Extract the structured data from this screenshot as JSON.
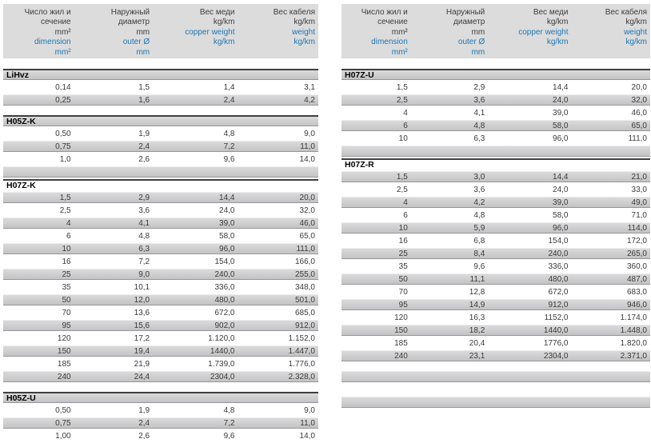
{
  "colors": {
    "accent_blue": "#1f76b2",
    "header_block_gray": "#dcdcdd",
    "row_gray": "#cbcbcd",
    "text_dark": "#3a3a3a"
  },
  "column_headers": [
    {
      "ru": [
        "Число жил и",
        "сечение",
        "mm²"
      ],
      "en": [
        "dimension",
        "mm²"
      ]
    },
    {
      "ru": [
        "Наружный",
        "диаметр",
        "mm"
      ],
      "en": [
        "outer Ø",
        "mm"
      ]
    },
    {
      "ru": [
        "Вес меди",
        "kg/km"
      ],
      "en": [
        "copper weight",
        "kg/km"
      ]
    },
    {
      "ru": [
        "Вес кабеля",
        "kg/km"
      ],
      "en": [
        "weight",
        "kg/km"
      ]
    }
  ],
  "tables": {
    "left": {
      "blocks": [
        [
          {
            "section": "LiHvz"
          },
          {
            "cells": [
              "0,14",
              "1,5",
              "1,4",
              "3,1"
            ]
          },
          {
            "cells": [
              "0,25",
              "1,6",
              "2,4",
              "4,2"
            ]
          }
        ],
        [
          {
            "section": "H05Z-K"
          },
          {
            "cells": [
              "0,50",
              "1,9",
              "4,8",
              "9,0"
            ]
          },
          {
            "cells": [
              "0,75",
              "2,4",
              "7,2",
              "11,0"
            ]
          },
          {
            "cells": [
              "1,0",
              "2,6",
              "9,6",
              "14,0"
            ]
          },
          {
            "empty": true
          },
          {
            "section": "H07Z-K"
          },
          {
            "cells": [
              "1,5",
              "2,9",
              "14,4",
              "20,0"
            ]
          },
          {
            "cells": [
              "2,5",
              "3,6",
              "24,0",
              "32,0"
            ]
          },
          {
            "cells": [
              "4",
              "4,1",
              "39,0",
              "46,0"
            ]
          },
          {
            "cells": [
              "6",
              "4,8",
              "58,0",
              "65,0"
            ]
          },
          {
            "cells": [
              "10",
              "6,3",
              "96,0",
              "111,0"
            ]
          },
          {
            "cells": [
              "16",
              "7,2",
              "154,0",
              "166,0"
            ]
          },
          {
            "cells": [
              "25",
              "9,0",
              "240,0",
              "255,0"
            ]
          },
          {
            "cells": [
              "35",
              "10,1",
              "336,0",
              "348,0"
            ]
          },
          {
            "cells": [
              "50",
              "12,0",
              "480,0",
              "501,0"
            ]
          },
          {
            "cells": [
              "70",
              "13,6",
              "672,0",
              "685,0"
            ]
          },
          {
            "cells": [
              "95",
              "15,6",
              "902,0",
              "912,0"
            ]
          },
          {
            "cells": [
              "120",
              "17,2",
              "1.120,0",
              "1.152,0"
            ]
          },
          {
            "cells": [
              "150",
              "19,4",
              "1440,0",
              "1.447,0"
            ]
          },
          {
            "cells": [
              "185",
              "21,9",
              "1.739,0",
              "1.776,0"
            ]
          },
          {
            "cells": [
              "240",
              "24,4",
              "2304,0",
              "2.328,0"
            ]
          }
        ],
        [
          {
            "section": "H05Z-U"
          },
          {
            "cells": [
              "0,50",
              "1,9",
              "4,8",
              "9,0"
            ]
          },
          {
            "cells": [
              "0,75",
              "2,4",
              "7,2",
              "11,0"
            ]
          },
          {
            "cells": [
              "1,00",
              "2,6",
              "9,6",
              "14,0"
            ]
          }
        ]
      ]
    },
    "right": {
      "blocks": [
        [
          {
            "section": "H07Z-U"
          },
          {
            "cells": [
              "1,5",
              "2,9",
              "14,4",
              "20,0"
            ]
          },
          {
            "cells": [
              "2,5",
              "3,6",
              "24,0",
              "32,0"
            ]
          },
          {
            "cells": [
              "4",
              "4,1",
              "39,0",
              "46,0"
            ]
          },
          {
            "cells": [
              "6",
              "4,8",
              "58,0",
              "65,0"
            ]
          },
          {
            "cells": [
              "10",
              "6,3",
              "96,0",
              "111,0"
            ]
          },
          {
            "empty": true
          },
          {
            "section": "H07Z-R"
          },
          {
            "cells": [
              "1,5",
              "3,0",
              "14,4",
              "21,0"
            ]
          },
          {
            "cells": [
              "2,5",
              "3,6",
              "24,0",
              "33,0"
            ]
          },
          {
            "cells": [
              "4",
              "4,2",
              "39,0",
              "49,0"
            ]
          },
          {
            "cells": [
              "6",
              "4,8",
              "58,0",
              "71,0"
            ]
          },
          {
            "cells": [
              "10",
              "5,9",
              "96,0",
              "114,0"
            ]
          },
          {
            "cells": [
              "16",
              "6,8",
              "154,0",
              "172,0"
            ]
          },
          {
            "cells": [
              "25",
              "8,4",
              "240,0",
              "265,0"
            ]
          },
          {
            "cells": [
              "35",
              "9,6",
              "336,0",
              "360,0"
            ]
          },
          {
            "cells": [
              "50",
              "11,1",
              "480,0",
              "487,0"
            ]
          },
          {
            "cells": [
              "70",
              "12,8",
              "672,0",
              "683,0"
            ]
          },
          {
            "cells": [
              "95",
              "14,9",
              "912,0",
              "946,0"
            ]
          },
          {
            "cells": [
              "120",
              "16,3",
              "1152,0",
              "1.174,0"
            ]
          },
          {
            "cells": [
              "150",
              "18,2",
              "1440,0",
              "1.448,0"
            ]
          },
          {
            "cells": [
              "185",
              "20,4",
              "1776,0",
              "1.820,0"
            ]
          },
          {
            "cells": [
              "240",
              "23,1",
              "2304,0",
              "2.371,0"
            ]
          }
        ],
        [
          {
            "empty": true
          }
        ],
        [
          {
            "empty": true
          }
        ]
      ]
    }
  }
}
